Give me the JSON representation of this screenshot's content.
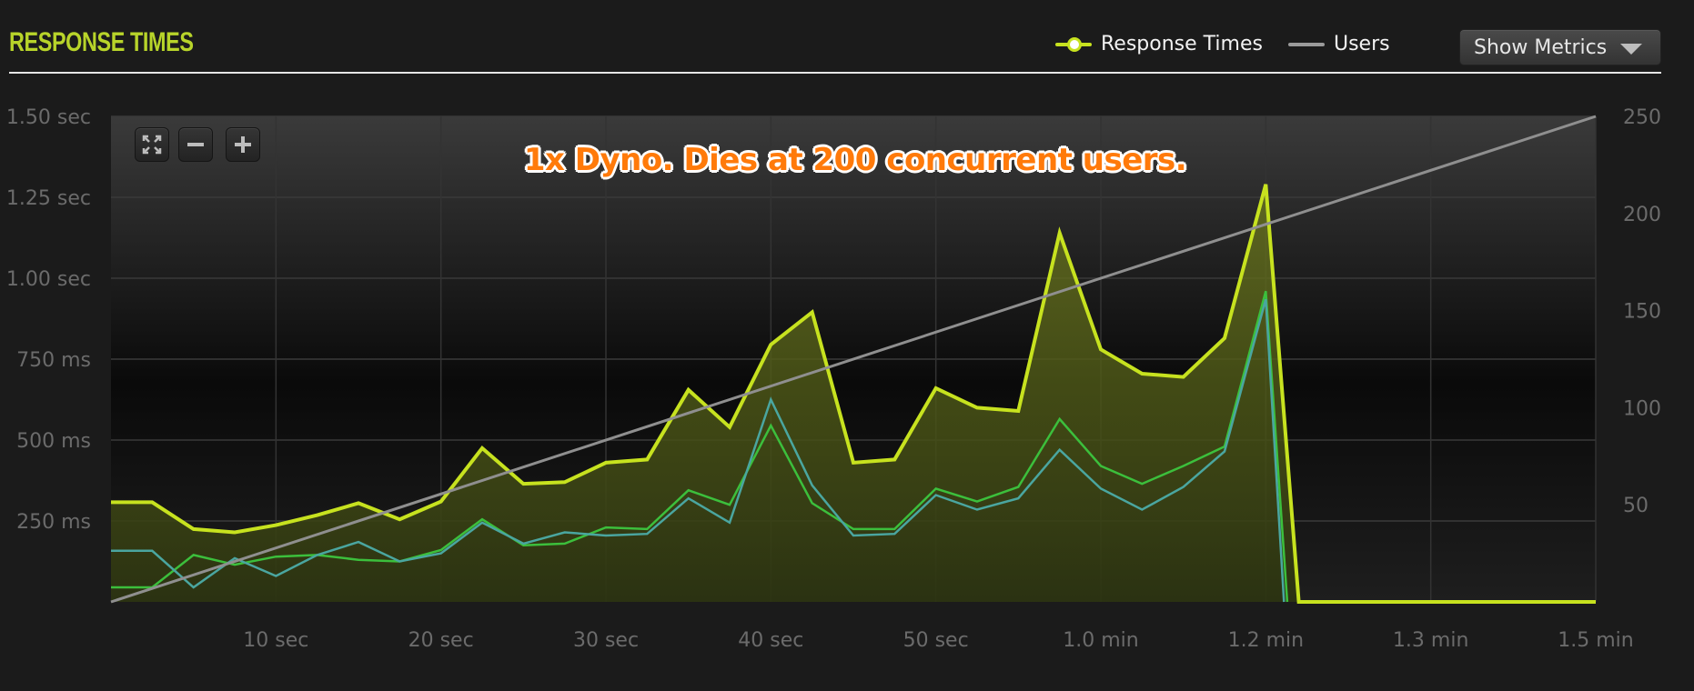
{
  "header": {
    "title": "RESPONSE TIMES"
  },
  "legend": {
    "items": [
      {
        "label": "Response Times",
        "color": "#c7e21f",
        "icon": "line-with-marker-icon"
      },
      {
        "label": "Users",
        "color": "#9a9a9a",
        "icon": "line-icon"
      }
    ]
  },
  "controls": {
    "show_metrics_label": "Show Metrics",
    "zoom_buttons": [
      {
        "name": "fullscreen",
        "icon": "fullscreen-icon"
      },
      {
        "name": "zoom-out",
        "icon": "minus-icon"
      },
      {
        "name": "zoom-in",
        "icon": "plus-icon"
      }
    ]
  },
  "chart_data": {
    "type": "line",
    "annotation": "1x Dyno. Dies at 200 concurrent users.",
    "xlim": [
      0,
      90
    ],
    "x_ticks": [
      {
        "value": 10,
        "label": "10 sec"
      },
      {
        "value": 20,
        "label": "20 sec"
      },
      {
        "value": 30,
        "label": "30 sec"
      },
      {
        "value": 40,
        "label": "40 sec"
      },
      {
        "value": 50,
        "label": "50 sec"
      },
      {
        "value": 60,
        "label": "1.0 min"
      },
      {
        "value": 70,
        "label": "1.2 min"
      },
      {
        "value": 80,
        "label": "1.3 min"
      },
      {
        "value": 90,
        "label": "1.5 min"
      }
    ],
    "y_left": {
      "min": 0,
      "max": 1500,
      "unit": "ms",
      "ticks": [
        {
          "value": 250,
          "label": "250 ms"
        },
        {
          "value": 500,
          "label": "500 ms"
        },
        {
          "value": 750,
          "label": "750 ms"
        },
        {
          "value": 1000,
          "label": "1.00 sec"
        },
        {
          "value": 1250,
          "label": "1.25 sec"
        },
        {
          "value": 1500,
          "label": "1.50 sec"
        }
      ]
    },
    "y_right": {
      "min": 0,
      "max": 250,
      "ticks": [
        {
          "value": 50,
          "label": "50"
        },
        {
          "value": 100,
          "label": "100"
        },
        {
          "value": 150,
          "label": "150"
        },
        {
          "value": 200,
          "label": "200"
        },
        {
          "value": 250,
          "label": "250"
        }
      ]
    },
    "grid": true,
    "series": [
      {
        "name": "Response Times",
        "axis": "left",
        "color": "#c7e21f",
        "fill": true,
        "points": [
          [
            0,
            308
          ],
          [
            2.5,
            308
          ],
          [
            5,
            225
          ],
          [
            7.5,
            215
          ],
          [
            10,
            237
          ],
          [
            12.5,
            268
          ],
          [
            15,
            305
          ],
          [
            17.5,
            255
          ],
          [
            20,
            310
          ],
          [
            22.5,
            475
          ],
          [
            25,
            365
          ],
          [
            27.5,
            370
          ],
          [
            30,
            430
          ],
          [
            32.5,
            440
          ],
          [
            35,
            655
          ],
          [
            37.5,
            540
          ],
          [
            40,
            795
          ],
          [
            42.5,
            895
          ],
          [
            45,
            430
          ],
          [
            47.5,
            440
          ],
          [
            50,
            660
          ],
          [
            52.5,
            600
          ],
          [
            55,
            590
          ],
          [
            57.5,
            1140
          ],
          [
            60,
            780
          ],
          [
            62.5,
            705
          ],
          [
            65,
            695
          ],
          [
            67.5,
            815
          ],
          [
            70,
            1290
          ],
          [
            72,
            0
          ],
          [
            75,
            0
          ],
          [
            80,
            0
          ],
          [
            85,
            0
          ],
          [
            90,
            0
          ]
        ]
      },
      {
        "name": "",
        "axis": "left",
        "color": "#3cbf3c",
        "fill": false,
        "points": [
          [
            0,
            45
          ],
          [
            2.5,
            45
          ],
          [
            5,
            145
          ],
          [
            7.5,
            115
          ],
          [
            10,
            140
          ],
          [
            12.5,
            145
          ],
          [
            15,
            130
          ],
          [
            17.5,
            125
          ],
          [
            20,
            160
          ],
          [
            22.5,
            255
          ],
          [
            25,
            175
          ],
          [
            27.5,
            180
          ],
          [
            30,
            230
          ],
          [
            32.5,
            225
          ],
          [
            35,
            345
          ],
          [
            37.5,
            300
          ],
          [
            40,
            545
          ],
          [
            42.5,
            305
          ],
          [
            45,
            225
          ],
          [
            47.5,
            225
          ],
          [
            50,
            350
          ],
          [
            52.5,
            310
          ],
          [
            55,
            355
          ],
          [
            57.5,
            565
          ],
          [
            60,
            420
          ],
          [
            62.5,
            365
          ],
          [
            65,
            420
          ],
          [
            67.5,
            480
          ],
          [
            70,
            960
          ],
          [
            71.3,
            0
          ]
        ]
      },
      {
        "name": "",
        "axis": "left",
        "color": "#4aa6a0",
        "fill": false,
        "points": [
          [
            0,
            158
          ],
          [
            2.5,
            158
          ],
          [
            5,
            45
          ],
          [
            7.5,
            135
          ],
          [
            10,
            80
          ],
          [
            12.5,
            145
          ],
          [
            15,
            185
          ],
          [
            17.5,
            125
          ],
          [
            20,
            150
          ],
          [
            22.5,
            245
          ],
          [
            25,
            180
          ],
          [
            27.5,
            215
          ],
          [
            30,
            205
          ],
          [
            32.5,
            210
          ],
          [
            35,
            320
          ],
          [
            37.5,
            245
          ],
          [
            40,
            625
          ],
          [
            42.5,
            360
          ],
          [
            45,
            205
          ],
          [
            47.5,
            210
          ],
          [
            50,
            330
          ],
          [
            52.5,
            285
          ],
          [
            55,
            320
          ],
          [
            57.5,
            470
          ],
          [
            60,
            350
          ],
          [
            62.5,
            285
          ],
          [
            65,
            355
          ],
          [
            67.5,
            465
          ],
          [
            70,
            935
          ],
          [
            71.1,
            0
          ]
        ]
      },
      {
        "name": "Users",
        "axis": "right",
        "color": "#8f8f8f",
        "fill": false,
        "points": [
          [
            0,
            0
          ],
          [
            90,
            250
          ]
        ]
      }
    ]
  }
}
